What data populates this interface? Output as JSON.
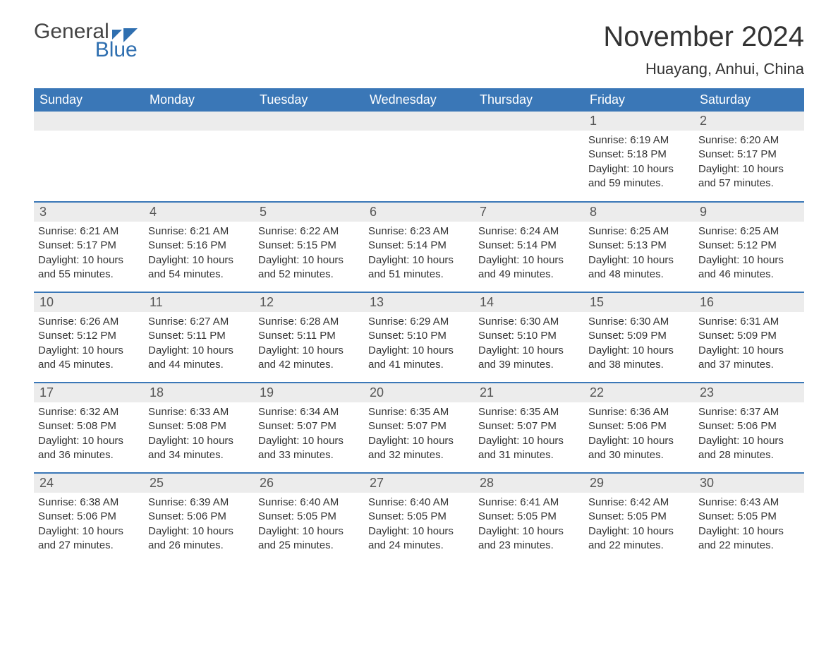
{
  "logo": {
    "word1": "General",
    "word2": "Blue"
  },
  "title": "November 2024",
  "location": "Huayang, Anhui, China",
  "colors": {
    "header_bg": "#3a77b7",
    "header_text": "#ffffff",
    "daynum_bg": "#ececec",
    "row_divider": "#3a77b7",
    "body_text": "#333333",
    "logo_accent": "#2f6fb0"
  },
  "weekdays": [
    "Sunday",
    "Monday",
    "Tuesday",
    "Wednesday",
    "Thursday",
    "Friday",
    "Saturday"
  ],
  "weeks": [
    [
      null,
      null,
      null,
      null,
      null,
      {
        "n": "1",
        "sunrise": "Sunrise: 6:19 AM",
        "sunset": "Sunset: 5:18 PM",
        "d1": "Daylight: 10 hours",
        "d2": "and 59 minutes."
      },
      {
        "n": "2",
        "sunrise": "Sunrise: 6:20 AM",
        "sunset": "Sunset: 5:17 PM",
        "d1": "Daylight: 10 hours",
        "d2": "and 57 minutes."
      }
    ],
    [
      {
        "n": "3",
        "sunrise": "Sunrise: 6:21 AM",
        "sunset": "Sunset: 5:17 PM",
        "d1": "Daylight: 10 hours",
        "d2": "and 55 minutes."
      },
      {
        "n": "4",
        "sunrise": "Sunrise: 6:21 AM",
        "sunset": "Sunset: 5:16 PM",
        "d1": "Daylight: 10 hours",
        "d2": "and 54 minutes."
      },
      {
        "n": "5",
        "sunrise": "Sunrise: 6:22 AM",
        "sunset": "Sunset: 5:15 PM",
        "d1": "Daylight: 10 hours",
        "d2": "and 52 minutes."
      },
      {
        "n": "6",
        "sunrise": "Sunrise: 6:23 AM",
        "sunset": "Sunset: 5:14 PM",
        "d1": "Daylight: 10 hours",
        "d2": "and 51 minutes."
      },
      {
        "n": "7",
        "sunrise": "Sunrise: 6:24 AM",
        "sunset": "Sunset: 5:14 PM",
        "d1": "Daylight: 10 hours",
        "d2": "and 49 minutes."
      },
      {
        "n": "8",
        "sunrise": "Sunrise: 6:25 AM",
        "sunset": "Sunset: 5:13 PM",
        "d1": "Daylight: 10 hours",
        "d2": "and 48 minutes."
      },
      {
        "n": "9",
        "sunrise": "Sunrise: 6:25 AM",
        "sunset": "Sunset: 5:12 PM",
        "d1": "Daylight: 10 hours",
        "d2": "and 46 minutes."
      }
    ],
    [
      {
        "n": "10",
        "sunrise": "Sunrise: 6:26 AM",
        "sunset": "Sunset: 5:12 PM",
        "d1": "Daylight: 10 hours",
        "d2": "and 45 minutes."
      },
      {
        "n": "11",
        "sunrise": "Sunrise: 6:27 AM",
        "sunset": "Sunset: 5:11 PM",
        "d1": "Daylight: 10 hours",
        "d2": "and 44 minutes."
      },
      {
        "n": "12",
        "sunrise": "Sunrise: 6:28 AM",
        "sunset": "Sunset: 5:11 PM",
        "d1": "Daylight: 10 hours",
        "d2": "and 42 minutes."
      },
      {
        "n": "13",
        "sunrise": "Sunrise: 6:29 AM",
        "sunset": "Sunset: 5:10 PM",
        "d1": "Daylight: 10 hours",
        "d2": "and 41 minutes."
      },
      {
        "n": "14",
        "sunrise": "Sunrise: 6:30 AM",
        "sunset": "Sunset: 5:10 PM",
        "d1": "Daylight: 10 hours",
        "d2": "and 39 minutes."
      },
      {
        "n": "15",
        "sunrise": "Sunrise: 6:30 AM",
        "sunset": "Sunset: 5:09 PM",
        "d1": "Daylight: 10 hours",
        "d2": "and 38 minutes."
      },
      {
        "n": "16",
        "sunrise": "Sunrise: 6:31 AM",
        "sunset": "Sunset: 5:09 PM",
        "d1": "Daylight: 10 hours",
        "d2": "and 37 minutes."
      }
    ],
    [
      {
        "n": "17",
        "sunrise": "Sunrise: 6:32 AM",
        "sunset": "Sunset: 5:08 PM",
        "d1": "Daylight: 10 hours",
        "d2": "and 36 minutes."
      },
      {
        "n": "18",
        "sunrise": "Sunrise: 6:33 AM",
        "sunset": "Sunset: 5:08 PM",
        "d1": "Daylight: 10 hours",
        "d2": "and 34 minutes."
      },
      {
        "n": "19",
        "sunrise": "Sunrise: 6:34 AM",
        "sunset": "Sunset: 5:07 PM",
        "d1": "Daylight: 10 hours",
        "d2": "and 33 minutes."
      },
      {
        "n": "20",
        "sunrise": "Sunrise: 6:35 AM",
        "sunset": "Sunset: 5:07 PM",
        "d1": "Daylight: 10 hours",
        "d2": "and 32 minutes."
      },
      {
        "n": "21",
        "sunrise": "Sunrise: 6:35 AM",
        "sunset": "Sunset: 5:07 PM",
        "d1": "Daylight: 10 hours",
        "d2": "and 31 minutes."
      },
      {
        "n": "22",
        "sunrise": "Sunrise: 6:36 AM",
        "sunset": "Sunset: 5:06 PM",
        "d1": "Daylight: 10 hours",
        "d2": "and 30 minutes."
      },
      {
        "n": "23",
        "sunrise": "Sunrise: 6:37 AM",
        "sunset": "Sunset: 5:06 PM",
        "d1": "Daylight: 10 hours",
        "d2": "and 28 minutes."
      }
    ],
    [
      {
        "n": "24",
        "sunrise": "Sunrise: 6:38 AM",
        "sunset": "Sunset: 5:06 PM",
        "d1": "Daylight: 10 hours",
        "d2": "and 27 minutes."
      },
      {
        "n": "25",
        "sunrise": "Sunrise: 6:39 AM",
        "sunset": "Sunset: 5:06 PM",
        "d1": "Daylight: 10 hours",
        "d2": "and 26 minutes."
      },
      {
        "n": "26",
        "sunrise": "Sunrise: 6:40 AM",
        "sunset": "Sunset: 5:05 PM",
        "d1": "Daylight: 10 hours",
        "d2": "and 25 minutes."
      },
      {
        "n": "27",
        "sunrise": "Sunrise: 6:40 AM",
        "sunset": "Sunset: 5:05 PM",
        "d1": "Daylight: 10 hours",
        "d2": "and 24 minutes."
      },
      {
        "n": "28",
        "sunrise": "Sunrise: 6:41 AM",
        "sunset": "Sunset: 5:05 PM",
        "d1": "Daylight: 10 hours",
        "d2": "and 23 minutes."
      },
      {
        "n": "29",
        "sunrise": "Sunrise: 6:42 AM",
        "sunset": "Sunset: 5:05 PM",
        "d1": "Daylight: 10 hours",
        "d2": "and 22 minutes."
      },
      {
        "n": "30",
        "sunrise": "Sunrise: 6:43 AM",
        "sunset": "Sunset: 5:05 PM",
        "d1": "Daylight: 10 hours",
        "d2": "and 22 minutes."
      }
    ]
  ]
}
